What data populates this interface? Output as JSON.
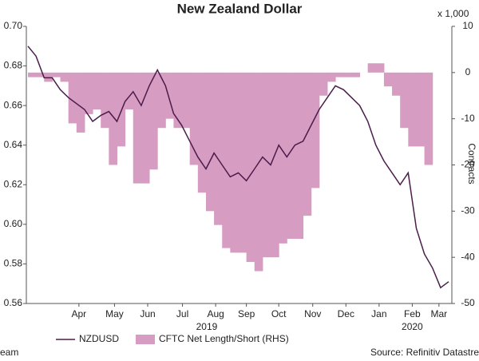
{
  "chart_data": {
    "type": "line",
    "title": "New Zealand Dollar",
    "y2_unit_note": "x 1,000",
    "y2label": "Contracts",
    "footer_left": "eam",
    "footer_right": "Source: Refinitiv Datastre",
    "year_labels": [
      {
        "x": 22.1,
        "label": "2019"
      },
      {
        "x": 47.5,
        "label": "2020"
      }
    ],
    "x": [
      0,
      1,
      2,
      3,
      4,
      5,
      6,
      7,
      8,
      9,
      10,
      11,
      12,
      13,
      14,
      15,
      16,
      17,
      18,
      19,
      20,
      21,
      22,
      23,
      24,
      25,
      26,
      27,
      28,
      29,
      30,
      31,
      32,
      33,
      34,
      35,
      36,
      37,
      38,
      39,
      40,
      41,
      42,
      43,
      44,
      45,
      46,
      47,
      48,
      49,
      50,
      51,
      52
    ],
    "xlim": [
      0,
      52
    ],
    "xticks": [
      {
        "value": 6.3,
        "label": "Apr"
      },
      {
        "value": 10.7,
        "label": "May"
      },
      {
        "value": 14.8,
        "label": "Jun"
      },
      {
        "value": 19.1,
        "label": "Jul"
      },
      {
        "value": 23.2,
        "label": "Aug"
      },
      {
        "value": 27.0,
        "label": "Sep"
      },
      {
        "value": 31.0,
        "label": "Oct"
      },
      {
        "value": 35.2,
        "label": "Nov"
      },
      {
        "value": 39.3,
        "label": "Dec"
      },
      {
        "value": 43.4,
        "label": "Jan"
      },
      {
        "value": 47.5,
        "label": "Feb"
      },
      {
        "value": 50.8,
        "label": "Mar"
      }
    ],
    "ylim": [
      0.56,
      0.7
    ],
    "yticks": [
      {
        "value": 0.7,
        "label": "0.70"
      },
      0.68,
      0.66,
      0.64,
      0.62,
      {
        "value": 0.6,
        "label": "0.60"
      },
      0.58,
      0.56
    ],
    "y2lim": [
      -50,
      10
    ],
    "y2ticks": [
      10,
      0,
      -10,
      -20,
      -30,
      -40,
      -50
    ],
    "series": [
      {
        "name": "NZDUSD",
        "type": "line",
        "axis": "y",
        "color": "#4b1c4b",
        "values": [
          0.69,
          0.685,
          0.674,
          0.674,
          0.668,
          0.664,
          0.661,
          0.658,
          0.652,
          0.655,
          0.657,
          0.652,
          0.662,
          0.667,
          0.66,
          0.67,
          0.678,
          0.67,
          0.656,
          0.65,
          0.642,
          0.634,
          0.628,
          0.636,
          0.63,
          0.624,
          0.626,
          0.622,
          0.628,
          0.634,
          0.63,
          0.64,
          0.634,
          0.64,
          0.642,
          0.65,
          0.658,
          0.664,
          0.67,
          0.668,
          0.664,
          0.66,
          0.652,
          0.64,
          0.632,
          0.626,
          0.62,
          0.626,
          0.598,
          0.585,
          0.578,
          0.568,
          0.571
        ]
      },
      {
        "name": "CFTC Net Length/Short (RHS)",
        "type": "area",
        "axis": "y2",
        "color": "#d79cc1",
        "values": [
          -1,
          -1,
          -2,
          -1,
          -2,
          -11,
          -13,
          -9,
          -8,
          -12,
          -20,
          -16,
          -8,
          -24,
          -24,
          -21,
          -12,
          -10,
          -12,
          -12,
          -20,
          -26,
          -30,
          -33,
          -38,
          -39,
          -39,
          -41,
          -43,
          -40,
          -40,
          -37,
          -36,
          -36,
          -31,
          -25,
          -5,
          -2,
          -1,
          -1,
          -1,
          0,
          2,
          2,
          -3,
          -5,
          -12,
          -16,
          -16,
          -20,
          null,
          null,
          null
        ]
      }
    ]
  }
}
